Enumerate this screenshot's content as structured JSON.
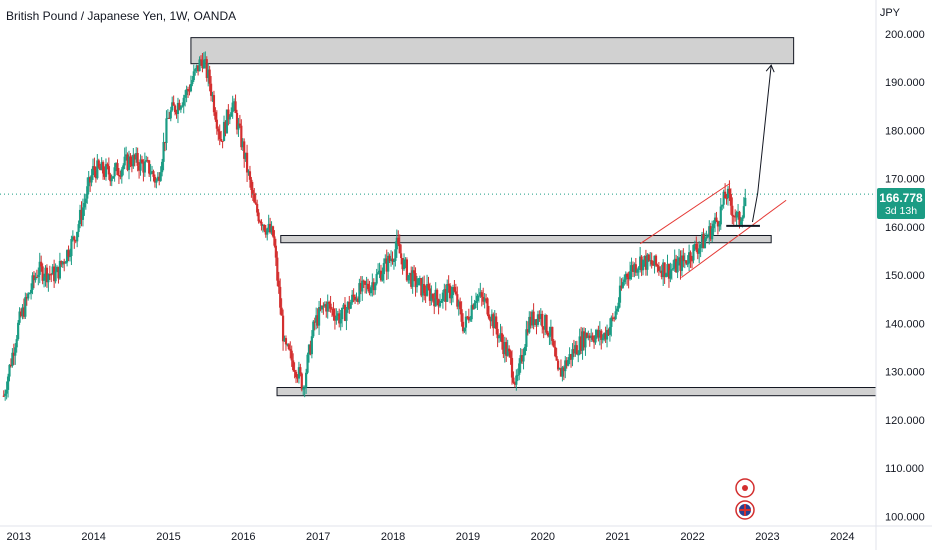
{
  "header": {
    "title": "British Pound / Japanese Yen, 1W, OANDA",
    "currency": "JPY"
  },
  "last_price": {
    "value": "166.778",
    "countdown": "3d 13h"
  },
  "colors": {
    "up": "#1b9c84",
    "down": "#d32f2f",
    "zone_fill": "#d1d1d1",
    "channel": "#e53935",
    "price_line": "#1b9c84"
  },
  "chart_data": {
    "type": "candlestick",
    "title": "British Pound / Japanese Yen, 1W, OANDA",
    "ylabel": "JPY",
    "ylim": [
      98,
      207
    ],
    "xlim": [
      2012.75,
      2024.45
    ],
    "grid": false,
    "y_ticks": [
      "200.000",
      "190.000",
      "180.000",
      "170.000",
      "160.000",
      "150.000",
      "140.000",
      "130.000",
      "120.000",
      "110.000",
      "100.000"
    ],
    "x_ticks": [
      "2013",
      "2014",
      "2015",
      "2016",
      "2017",
      "2018",
      "2019",
      "2020",
      "2021",
      "2022",
      "2023",
      "2024"
    ],
    "last": 166.778,
    "price_path": [
      [
        2012.8,
        125
      ],
      [
        2013.0,
        140
      ],
      [
        2013.25,
        151
      ],
      [
        2013.5,
        150
      ],
      [
        2013.75,
        158
      ],
      [
        2014.0,
        172
      ],
      [
        2014.25,
        171
      ],
      [
        2014.5,
        174
      ],
      [
        2014.75,
        172
      ],
      [
        2014.85,
        169
      ],
      [
        2015.0,
        183
      ],
      [
        2015.25,
        188
      ],
      [
        2015.45,
        195
      ],
      [
        2015.55,
        190
      ],
      [
        2015.7,
        178
      ],
      [
        2015.85,
        186
      ],
      [
        2016.0,
        176
      ],
      [
        2016.15,
        164
      ],
      [
        2016.3,
        160
      ],
      [
        2016.4,
        158
      ],
      [
        2016.45,
        150
      ],
      [
        2016.55,
        135
      ],
      [
        2016.7,
        131
      ],
      [
        2016.8,
        127
      ],
      [
        2016.95,
        140
      ],
      [
        2017.1,
        144
      ],
      [
        2017.3,
        141
      ],
      [
        2017.5,
        146
      ],
      [
        2017.7,
        148
      ],
      [
        2017.95,
        153
      ],
      [
        2018.05,
        156
      ],
      [
        2018.2,
        150
      ],
      [
        2018.4,
        147
      ],
      [
        2018.6,
        145
      ],
      [
        2018.8,
        147
      ],
      [
        2018.95,
        139
      ],
      [
        2019.1,
        146
      ],
      [
        2019.25,
        144
      ],
      [
        2019.4,
        138
      ],
      [
        2019.55,
        133
      ],
      [
        2019.65,
        127
      ],
      [
        2019.8,
        140
      ],
      [
        2019.95,
        142
      ],
      [
        2020.1,
        138
      ],
      [
        2020.2,
        129
      ],
      [
        2020.4,
        134
      ],
      [
        2020.6,
        138
      ],
      [
        2020.8,
        137
      ],
      [
        2020.95,
        141
      ],
      [
        2021.1,
        150
      ],
      [
        2021.3,
        153
      ],
      [
        2021.5,
        152
      ],
      [
        2021.7,
        151
      ],
      [
        2021.9,
        153
      ],
      [
        2022.0,
        155
      ],
      [
        2022.15,
        157
      ],
      [
        2022.35,
        162
      ],
      [
        2022.45,
        167
      ],
      [
        2022.55,
        163
      ],
      [
        2022.62,
        161
      ],
      [
        2022.72,
        166.8
      ]
    ],
    "zones": [
      {
        "x0": 2015.3,
        "x1": 2023.35,
        "y0": 193.8,
        "y1": 199.2
      },
      {
        "x0": 2016.5,
        "x1": 2023.05,
        "y0": 156.7,
        "y1": 158.2
      },
      {
        "x0": 2016.45,
        "x1": 2024.45,
        "y0": 125.0,
        "y1": 126.7
      }
    ],
    "channel": [
      {
        "x0": 2021.3,
        "x1": 2022.5,
        "y0": 156.5,
        "y1": 169.0
      },
      {
        "x0": 2021.85,
        "x1": 2023.25,
        "y0": 149.5,
        "y1": 165.5
      }
    ],
    "support_segment": {
      "x0": 2022.45,
      "x1": 2022.9,
      "y": 160.2
    },
    "projection_arrow": [
      [
        2022.8,
        161.0
      ],
      [
        2022.87,
        167.0
      ],
      [
        2023.05,
        193.5
      ]
    ]
  },
  "events": {
    "event_icon": "event-circle-icon",
    "flag_icon": "uk-flag-icon"
  }
}
